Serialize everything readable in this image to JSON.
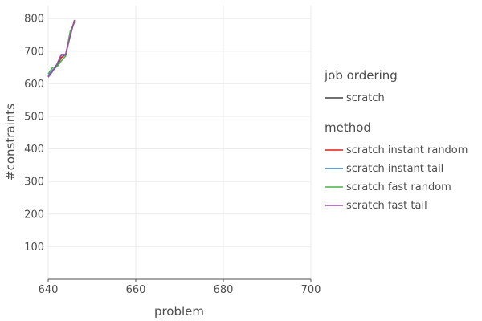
{
  "chart_data": {
    "type": "line",
    "xlabel": "problem",
    "ylabel": "#constraints",
    "xlim": [
      640,
      700
    ],
    "ylim": [
      0,
      840
    ],
    "x_ticks": [
      640,
      660,
      680,
      700
    ],
    "y_ticks": [
      100,
      200,
      300,
      400,
      500,
      600,
      700,
      800
    ],
    "grid": true,
    "legend_position": "right",
    "legends": [
      {
        "title": "job ordering",
        "entries": [
          {
            "label": "scratch",
            "color": "#404040"
          }
        ]
      },
      {
        "title": "method",
        "entries": [
          {
            "label": "scratch instant random",
            "color": "#e41a1c"
          },
          {
            "label": "scratch instant tail",
            "color": "#377eb8"
          },
          {
            "label": "scratch fast random",
            "color": "#4daf4a"
          },
          {
            "label": "scratch fast tail",
            "color": "#984ea3"
          }
        ]
      }
    ],
    "series": [
      {
        "name": "scratch instant random",
        "color": "#e41a1c",
        "x": [
          640,
          641,
          642,
          643,
          644,
          645,
          646
        ],
        "y": [
          622,
          640,
          655,
          680,
          690,
          755,
          790
        ]
      },
      {
        "name": "scratch instant tail",
        "color": "#377eb8",
        "x": [
          640,
          641,
          642,
          643,
          644,
          645,
          646
        ],
        "y": [
          624,
          642,
          654,
          688,
          688,
          748,
          794
        ]
      },
      {
        "name": "scratch fast random",
        "color": "#4daf4a",
        "x": [
          640,
          641,
          642,
          643,
          644,
          645,
          646
        ],
        "y": [
          630,
          650,
          652,
          670,
          685,
          760,
          788
        ]
      },
      {
        "name": "scratch fast tail",
        "color": "#984ea3",
        "x": [
          640,
          641,
          642,
          643,
          644,
          645,
          646
        ],
        "y": [
          620,
          638,
          660,
          690,
          690,
          745,
          796
        ]
      }
    ]
  }
}
